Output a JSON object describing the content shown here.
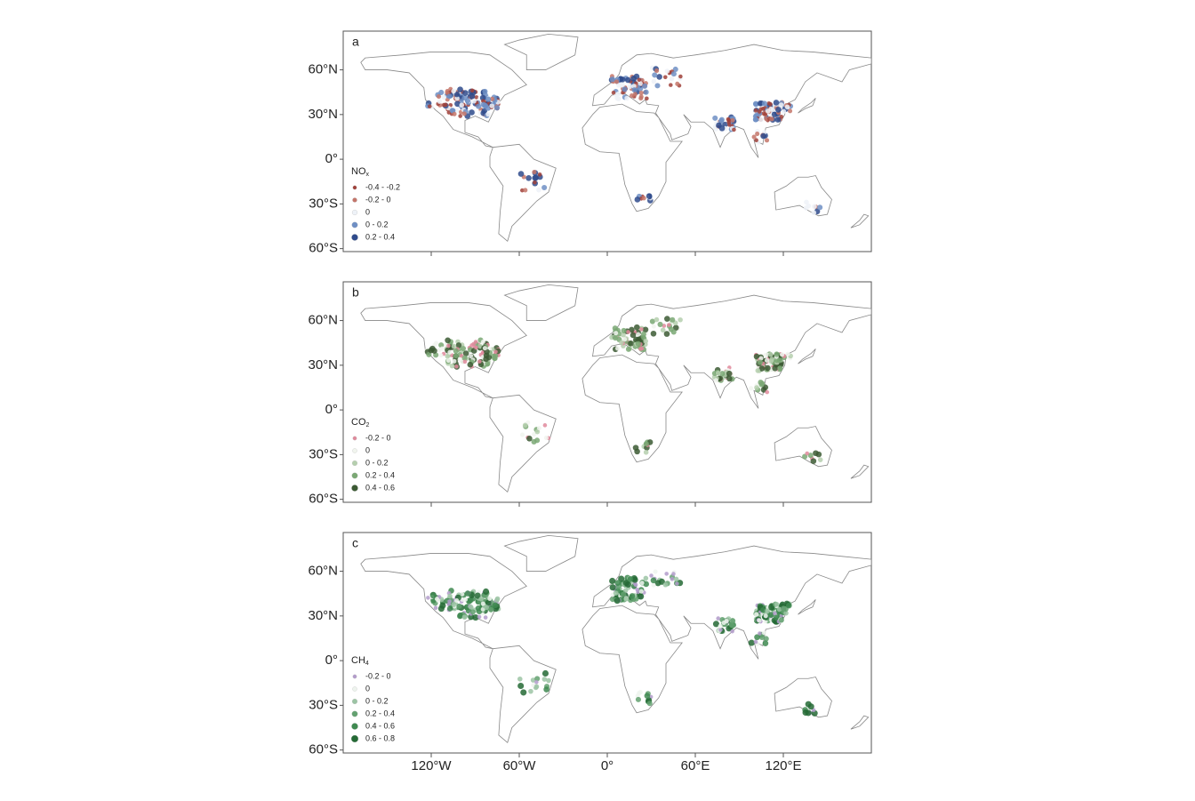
{
  "lon_range": [
    -180,
    180
  ],
  "lat_range": [
    -62,
    86
  ],
  "lat_ticks": [
    {
      "value": 60,
      "label": "60°N"
    },
    {
      "value": 30,
      "label": "30°N"
    },
    {
      "value": 0,
      "label": "0°"
    },
    {
      "value": -30,
      "label": "30°S"
    },
    {
      "value": -60,
      "label": "60°S"
    }
  ],
  "lon_ticks": [
    {
      "value": -120,
      "label": "120°W"
    },
    {
      "value": -60,
      "label": "60°W"
    },
    {
      "value": 0,
      "label": "0°"
    },
    {
      "value": 60,
      "label": "60°E"
    },
    {
      "value": 120,
      "label": "120°E"
    }
  ],
  "panels": [
    {
      "label": "a",
      "legend": {
        "title": "NO",
        "title_sub": "x",
        "items": [
          {
            "label": "-0.4 - -0.2",
            "color": "#a0413a"
          },
          {
            "label": "-0.2 - 0",
            "color": "#c4756a"
          },
          {
            "label": "0",
            "color": "#eef2f8"
          },
          {
            "label": "0 - 0.2",
            "color": "#6f8fc4"
          },
          {
            "label": "0.2 - 0.4",
            "color": "#2f4b8c"
          }
        ]
      }
    },
    {
      "label": "b",
      "legend": {
        "title": "CO",
        "title_sub": "2",
        "items": [
          {
            "label": "-0.2 - 0",
            "color": "#e08a9c"
          },
          {
            "label": "0",
            "color": "#f1f5ee"
          },
          {
            "label": "0 - 0.2",
            "color": "#b5cfae"
          },
          {
            "label": "0.2 - 0.4",
            "color": "#7aa874"
          },
          {
            "label": "0.4 - 0.6",
            "color": "#3c5a34"
          }
        ]
      }
    },
    {
      "label": "c",
      "legend": {
        "title": "CH",
        "title_sub": "4",
        "items": [
          {
            "label": "-0.2 - 0",
            "color": "#b39ccb"
          },
          {
            "label": "0",
            "color": "#eef4ee"
          },
          {
            "label": "0 - 0.2",
            "color": "#9cc4a4"
          },
          {
            "label": "0.2 - 0.4",
            "color": "#63a170"
          },
          {
            "label": "0.4 - 0.6",
            "color": "#3f8a51"
          },
          {
            "label": "0.6 - 0.8",
            "color": "#246a35"
          }
        ]
      }
    }
  ]
}
